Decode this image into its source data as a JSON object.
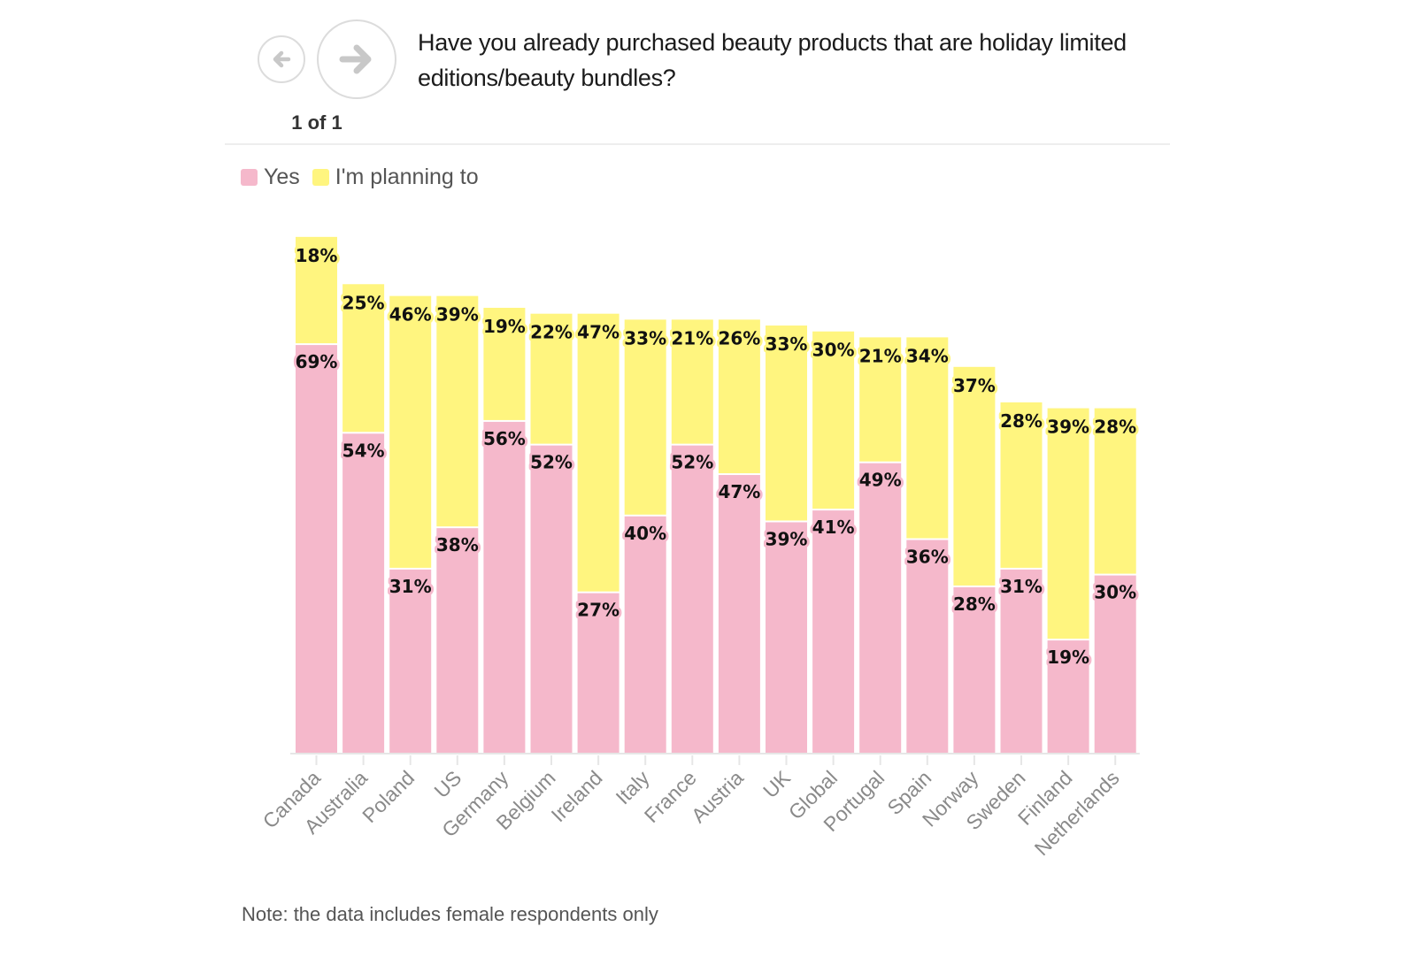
{
  "navigation": {
    "prev_icon": "arrow-left-icon",
    "next_icon": "arrow-right-icon",
    "pager_text": "1 of 1"
  },
  "question": "Have you already purchased beauty products that are holiday limited editions/beauty bundles?",
  "legend": [
    {
      "label": "Yes",
      "color": "#f5b8cb"
    },
    {
      "label": "I'm planning to",
      "color": "#fff57f"
    }
  ],
  "note": "Note: the data includes female respondents only",
  "colors": {
    "yes": "#f5b8cb",
    "planning": "#fff57f",
    "label_halo_yes": "#f5b8cb",
    "label_halo_planning": "#fff57f",
    "axis": "#e6e6e6",
    "tick_text": "#8a8a8a"
  },
  "chart_data": {
    "type": "bar",
    "stacked": true,
    "title": "Have you already purchased beauty products that are holiday limited editions/beauty bundles?",
    "xlabel": "",
    "ylabel": "",
    "ylim": [
      0,
      90
    ],
    "grid": false,
    "legend_position": "top-left",
    "categories": [
      "Canada",
      "Australia",
      "Poland",
      "US",
      "Germany",
      "Belgium",
      "Ireland",
      "Italy",
      "France",
      "Austria",
      "UK",
      "Global",
      "Portugal",
      "Spain",
      "Norway",
      "Sweden",
      "Finland",
      "Netherlands"
    ],
    "series": [
      {
        "name": "Yes",
        "values": [
          69,
          54,
          31,
          38,
          56,
          52,
          27,
          40,
          52,
          47,
          39,
          41,
          49,
          36,
          28,
          31,
          19,
          30
        ]
      },
      {
        "name": "I'm planning to",
        "values": [
          18,
          25,
          46,
          39,
          19,
          22,
          47,
          33,
          21,
          26,
          33,
          30,
          21,
          34,
          37,
          28,
          39,
          28
        ]
      }
    ],
    "value_suffix": "%"
  }
}
